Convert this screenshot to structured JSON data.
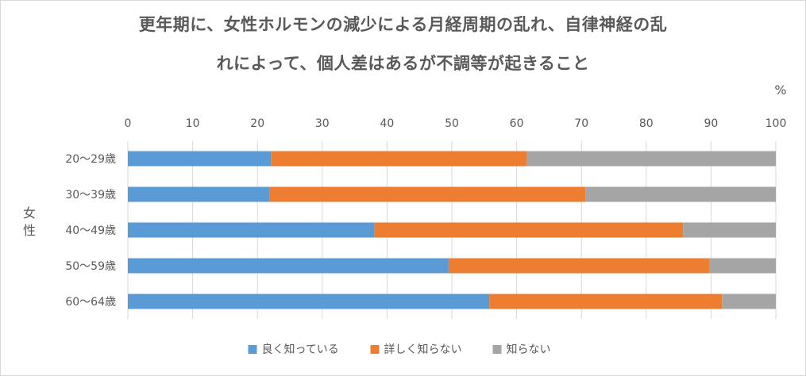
{
  "chart_data": {
    "type": "bar",
    "orientation": "horizontal",
    "stacked": true,
    "title_lines": [
      "更年期に、女性ホルモンの減少による月経周期の乱れ、自律神経の乱",
      "れによって、個人差はあるが不調等が起きること"
    ],
    "unit_label": "%",
    "group_label": "女性",
    "xlim": [
      0,
      100
    ],
    "x_ticks": [
      "0",
      "10",
      "20",
      "30",
      "40",
      "50",
      "60",
      "70",
      "80",
      "90",
      "100"
    ],
    "categories": [
      "20～29歳",
      "30～39歳",
      "40～49歳",
      "50～59歳",
      "60～64歳"
    ],
    "series": [
      {
        "name": "良く知っている",
        "color": "#5b9bd5",
        "values": [
          22.1,
          21.9,
          38.0,
          49.5,
          55.8
        ]
      },
      {
        "name": "詳しく知らない",
        "color": "#ed7d31",
        "values": [
          39.5,
          48.7,
          47.7,
          40.3,
          35.9
        ]
      },
      {
        "name": "知らない",
        "color": "#a5a5a5",
        "values": [
          38.4,
          29.4,
          14.3,
          10.2,
          8.3
        ]
      }
    ],
    "grid": "vertical",
    "legend_position": "bottom"
  }
}
